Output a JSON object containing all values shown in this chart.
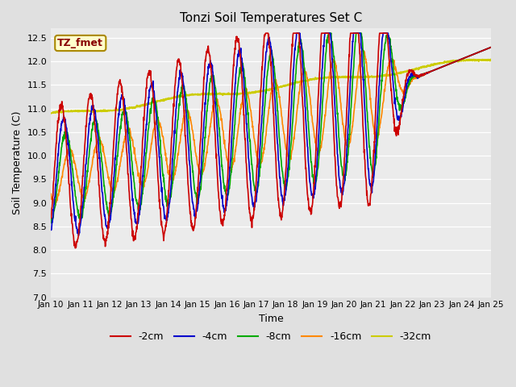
{
  "title": "Tonzi Soil Temperatures Set C",
  "xlabel": "Time",
  "ylabel": "Soil Temperature (C)",
  "ylim": [
    7.0,
    12.7
  ],
  "yticks": [
    7.0,
    7.5,
    8.0,
    8.5,
    9.0,
    9.5,
    10.0,
    10.5,
    11.0,
    11.5,
    12.0,
    12.5
  ],
  "colors": {
    "-2cm": "#cc0000",
    "-4cm": "#0000cc",
    "-8cm": "#00aa00",
    "-16cm": "#ff8800",
    "-32cm": "#cccc00"
  },
  "legend_label": "TZ_fmet",
  "legend_box_color": "#ffffcc",
  "legend_box_edge": "#aa8800",
  "legend_text_color": "#880000",
  "fig_bg": "#e0e0e0",
  "plot_bg": "#ebebeb",
  "start_day": 10,
  "end_day": 25
}
